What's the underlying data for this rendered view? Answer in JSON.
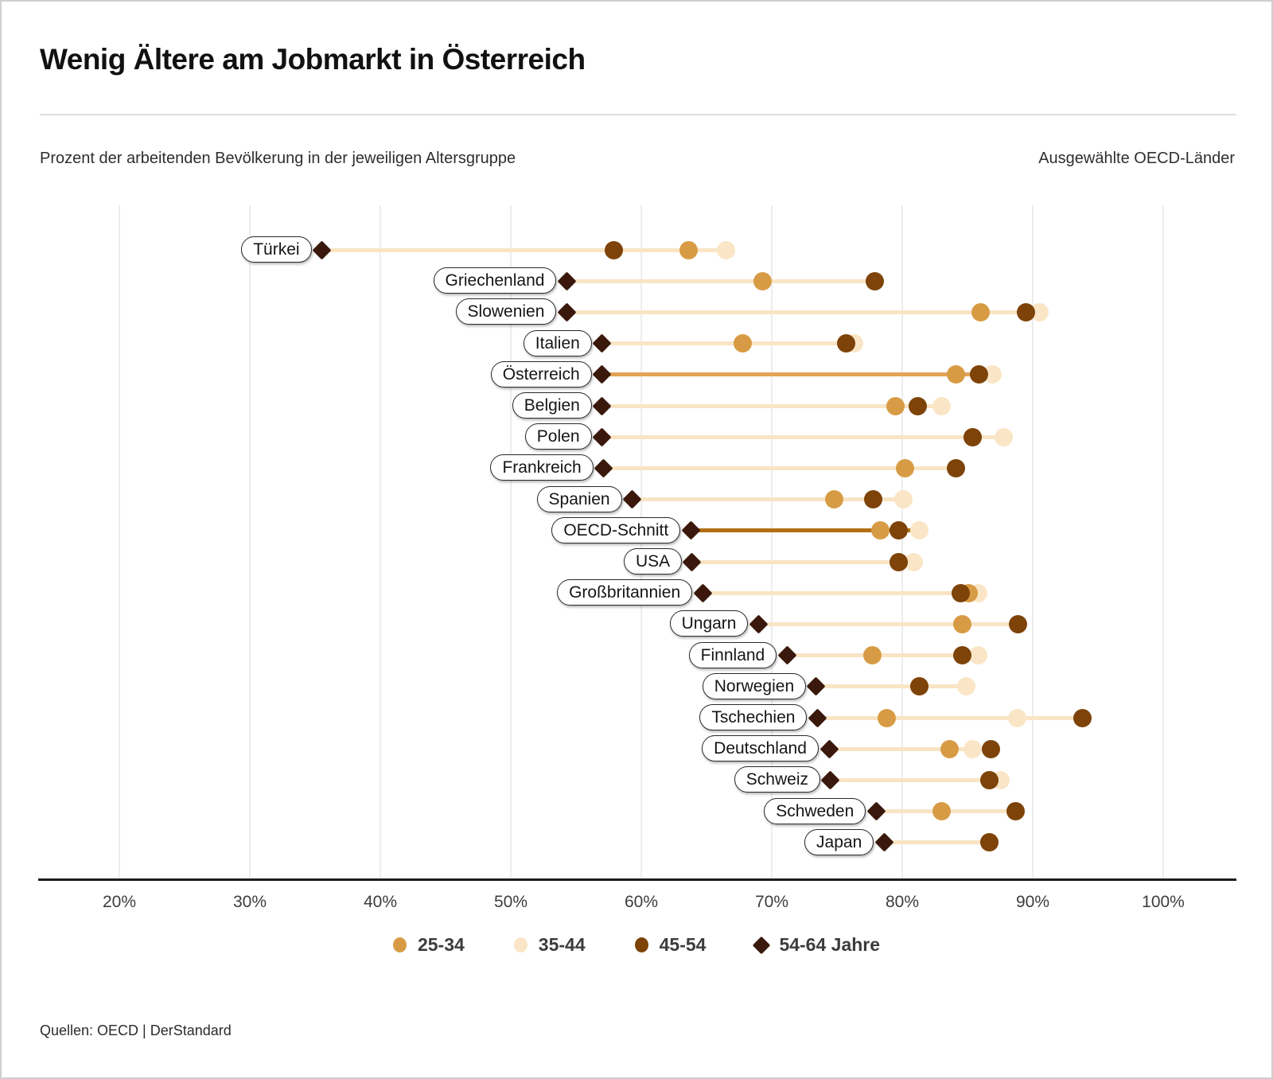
{
  "header": {
    "title": "Wenig Ältere am Jobmarkt in Österreich",
    "subtitle_left": "Prozent der arbeitenden Bevölkerung in der jeweiligen Altersgruppe",
    "subtitle_right": "Ausgewählte OECD-Länder"
  },
  "source": "Quellen: OECD | DerStandard",
  "chart_data": {
    "type": "scatter",
    "variant": "dumbbell-dot-plot",
    "unit": "percent employed in age group",
    "x_axis": {
      "min": 20,
      "max": 100,
      "tick_values": [
        20,
        30,
        40,
        50,
        60,
        70,
        80,
        90,
        100
      ],
      "tick_labels": [
        "20%",
        "30%",
        "40%",
        "50%",
        "60%",
        "70%",
        "80%",
        "90%",
        "100%"
      ],
      "grid": true
    },
    "legend_position": "bottom-center",
    "series_meta": [
      {
        "key": "g25_34",
        "label": "25-34",
        "shape": "circle",
        "color": "#D89B45"
      },
      {
        "key": "g35_44",
        "label": "35-44",
        "shape": "circle",
        "color": "#FAE6C6"
      },
      {
        "key": "g45_54",
        "label": "45-54",
        "shape": "circle",
        "color": "#7D4309"
      },
      {
        "key": "g54_64",
        "label": "54-64 Jahre",
        "shape": "diamond",
        "color": "#3A190C"
      }
    ],
    "line_colors": {
      "default": "#F9E4C4",
      "highlight_austria": "#E2A458",
      "highlight_oecd": "#B26F14"
    },
    "rows": [
      {
        "country": "Türkei",
        "g54_64": 35.5,
        "g45_54": 57.9,
        "g25_34": 63.6,
        "g35_44": 66.5,
        "line": "default"
      },
      {
        "country": "Griechenland",
        "g54_64": 54.3,
        "g25_34": 69.3,
        "g35_44": 77.9,
        "g45_54": 77.9,
        "line": "default"
      },
      {
        "country": "Slowenien",
        "g54_64": 54.3,
        "g25_34": 86.0,
        "g45_54": 89.5,
        "g35_44": 90.5,
        "line": "default"
      },
      {
        "country": "Italien",
        "g54_64": 57.0,
        "g25_34": 67.8,
        "g45_54": 75.7,
        "g35_44": 76.3,
        "line": "default"
      },
      {
        "country": "Österreich",
        "g54_64": 57.0,
        "g25_34": 84.1,
        "g45_54": 85.9,
        "g35_44": 86.9,
        "line": "highlight_austria"
      },
      {
        "country": "Belgien",
        "g54_64": 57.0,
        "g25_34": 79.5,
        "g45_54": 81.2,
        "g35_44": 83.0,
        "line": "default"
      },
      {
        "country": "Polen",
        "g54_64": 57.0,
        "g25_34": 85.4,
        "g45_54": 85.4,
        "g35_44": 87.8,
        "line": "default"
      },
      {
        "country": "Frankreich",
        "g54_64": 57.1,
        "g25_34": 80.2,
        "g35_44": 84.1,
        "g45_54": 84.1,
        "line": "default"
      },
      {
        "country": "Spanien",
        "g54_64": 59.3,
        "g25_34": 74.8,
        "g45_54": 77.8,
        "g35_44": 80.1,
        "line": "default"
      },
      {
        "country": "OECD-Schnitt",
        "g54_64": 63.8,
        "g25_34": 78.3,
        "g45_54": 79.7,
        "g35_44": 81.3,
        "line": "highlight_oecd"
      },
      {
        "country": "USA",
        "g54_64": 63.9,
        "g25_34": 79.7,
        "g45_54": 79.7,
        "g35_44": 80.9,
        "line": "default"
      },
      {
        "country": "Großbritannien",
        "g54_64": 64.7,
        "g45_54": 84.5,
        "g25_34": 85.1,
        "g35_44": 85.8,
        "line": "default"
      },
      {
        "country": "Ungarn",
        "g54_64": 69.0,
        "g35_44": 84.6,
        "g25_34": 84.6,
        "g45_54": 88.9,
        "line": "default"
      },
      {
        "country": "Finnland",
        "g54_64": 71.2,
        "g25_34": 77.7,
        "g45_54": 84.6,
        "g35_44": 85.8,
        "line": "default"
      },
      {
        "country": "Norwegien",
        "g54_64": 73.4,
        "g25_34": 81.3,
        "g45_54": 81.3,
        "g35_44": 84.9,
        "line": "default"
      },
      {
        "country": "Tschechien",
        "g54_64": 73.5,
        "g25_34": 78.8,
        "g35_44": 88.8,
        "g45_54": 93.8,
        "line": "default"
      },
      {
        "country": "Deutschland",
        "g54_64": 74.4,
        "g25_34": 83.6,
        "g35_44": 85.4,
        "g45_54": 86.8,
        "line": "default"
      },
      {
        "country": "Schweiz",
        "g54_64": 74.5,
        "g25_34": 86.7,
        "g45_54": 86.7,
        "g35_44": 87.5,
        "line": "default"
      },
      {
        "country": "Schweden",
        "g54_64": 78.0,
        "g25_34": 83.0,
        "g35_44": 88.7,
        "g45_54": 88.7,
        "line": "default"
      },
      {
        "country": "Japan",
        "g54_64": 78.6,
        "g25_34": 86.7,
        "g35_44": 86.7,
        "g45_54": 86.7,
        "line": "default"
      }
    ]
  }
}
